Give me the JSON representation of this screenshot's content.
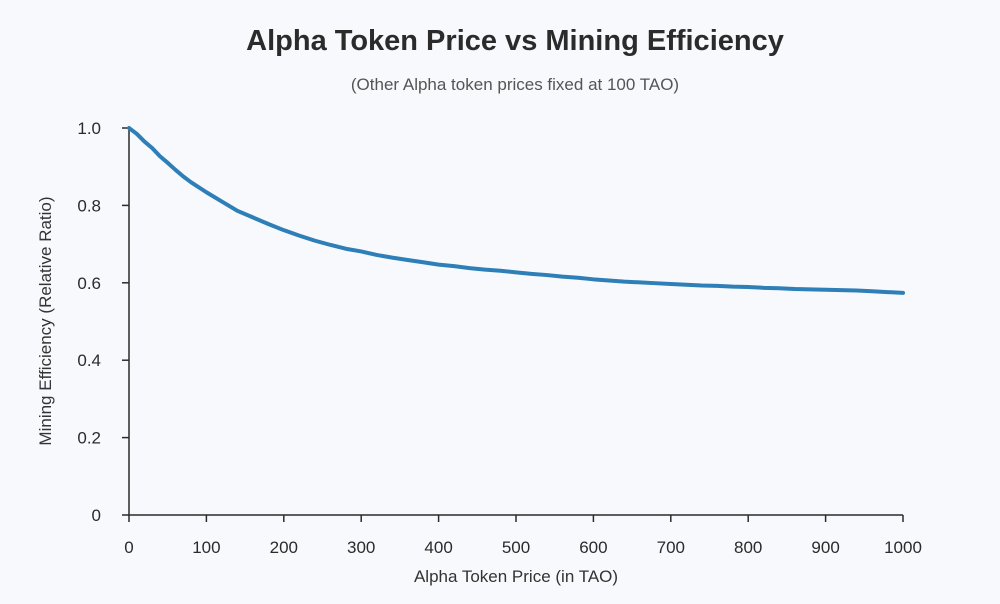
{
  "chart_data": {
    "type": "line",
    "title": "Alpha Token Price vs Mining Efficiency",
    "subtitle": "(Other Alpha token prices fixed at 100 TAO)",
    "xlabel": "Alpha Token Price (in TAO)",
    "ylabel": "Mining Efficiency (Relative Ratio)",
    "xlim": [
      0,
      1000
    ],
    "ylim": [
      0,
      1.0
    ],
    "x_ticks": [
      0,
      100,
      200,
      300,
      400,
      500,
      600,
      700,
      800,
      900,
      1000
    ],
    "x_tick_labels": [
      "0",
      "100",
      "200",
      "300",
      "400",
      "500",
      "600",
      "700",
      "800",
      "900",
      "1000"
    ],
    "y_ticks": [
      0,
      0.2,
      0.4,
      0.6,
      0.8,
      1.0
    ],
    "y_tick_labels": [
      "0",
      "0.2",
      "0.4",
      "0.6",
      "0.8",
      "1.0"
    ],
    "grid": false,
    "series": [
      {
        "color": "#2e7eb8",
        "x": [
          0,
          10,
          20,
          30,
          40,
          50,
          60,
          70,
          80,
          100,
          120,
          140,
          160,
          180,
          200,
          220,
          240,
          260,
          280,
          300,
          320,
          340,
          360,
          380,
          400,
          420,
          440,
          460,
          480,
          500,
          520,
          540,
          560,
          580,
          600,
          620,
          640,
          660,
          680,
          700,
          720,
          740,
          760,
          780,
          800,
          820,
          840,
          860,
          880,
          900,
          920,
          940,
          960,
          980,
          1000
        ],
        "y": [
          1.0,
          0.985,
          0.965,
          0.948,
          0.927,
          0.91,
          0.892,
          0.875,
          0.86,
          0.834,
          0.81,
          0.786,
          0.769,
          0.752,
          0.736,
          0.722,
          0.709,
          0.698,
          0.688,
          0.681,
          0.672,
          0.665,
          0.659,
          0.653,
          0.647,
          0.643,
          0.638,
          0.634,
          0.631,
          0.627,
          0.623,
          0.62,
          0.616,
          0.613,
          0.609,
          0.606,
          0.603,
          0.601,
          0.599,
          0.597,
          0.595,
          0.593,
          0.592,
          0.59,
          0.589,
          0.587,
          0.586,
          0.584,
          0.583,
          0.582,
          0.581,
          0.58,
          0.578,
          0.576,
          0.574
        ]
      }
    ]
  }
}
